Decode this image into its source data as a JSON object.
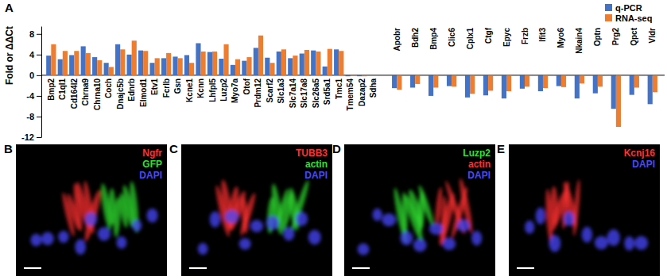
{
  "chart_data": {
    "type": "bar",
    "panel_label": "A",
    "y_label": "Fold or ΔΔCt",
    "categories": [
      "Bmp2",
      "C1ql1",
      "Cd164l2",
      "Chrna9",
      "Chrna10",
      "Coch",
      "Dnajc5b",
      "Ednrb",
      "Elmod1",
      "Etv1",
      "Fcrlb",
      "Gsn",
      "Kcne1",
      "Kcnn",
      "Lhfpl5",
      "Luzp2",
      "Myo7a",
      "Otof",
      "Prdm12",
      "Scarf2",
      "Slc1a3",
      "Slc7a14",
      "Slc17a8",
      "Slc26a5",
      "Srd5a1",
      "Tmc1",
      "Tmem54",
      "Dazap2",
      "Sdha",
      "Apobr",
      "Bdh2",
      "Bmp4",
      "Clic6",
      "Cplx1",
      "Ctgf",
      "Epyc",
      "Frzb",
      "Ifit3",
      "Myo6",
      "Nkain4",
      "Optn",
      "Prg2",
      "Qpct",
      "Vldr"
    ],
    "series": [
      {
        "name": "q-PCR",
        "color": "#4472c4",
        "values": [
          3.8,
          3.1,
          3.9,
          5.6,
          3.5,
          2.4,
          6.0,
          4.0,
          4.8,
          2.4,
          3.3,
          3.6,
          3.9,
          6.2,
          4.5,
          3.2,
          2.0,
          2.8,
          5.3,
          3.4,
          4.6,
          3.3,
          4.2,
          4.8,
          1.7,
          5.0,
          -0.2,
          -0.2,
          0,
          -2.5,
          -2.4,
          -4.0,
          -2.1,
          -4.3,
          -3.9,
          -4.5,
          -2.6,
          -3.1,
          -2.1,
          -4.5,
          -3.5,
          -6.5,
          -3.8,
          -5.6
        ]
      },
      {
        "name": "RNA-seq",
        "color": "#ed7d31",
        "values": [
          6.0,
          4.7,
          4.7,
          4.3,
          2.9,
          1.6,
          5.0,
          6.7,
          4.7,
          3.3,
          4.3,
          3.3,
          2.4,
          4.6,
          4.6,
          6.0,
          3.1,
          3.5,
          7.7,
          2.4,
          5.0,
          3.8,
          4.9,
          4.6,
          5.1,
          4.7,
          -0.1,
          -0.2,
          0,
          -2.8,
          -1.7,
          -2.4,
          -2.2,
          -3.6,
          -3.0,
          -3.1,
          -2.2,
          -2.5,
          -2.3,
          -1.6,
          -2.2,
          -10.0,
          -2.4,
          -3.3
        ]
      }
    ],
    "ylim": [
      -12,
      9.5
    ],
    "yticks": [
      -12,
      -8,
      -4,
      0,
      4,
      8
    ],
    "legend": "top-right"
  },
  "image_panels": [
    {
      "label": "B",
      "stains": [
        {
          "text": "Ngfr",
          "color": "#ff3030"
        },
        {
          "text": "GFP",
          "color": "#30e030"
        },
        {
          "text": "DAPI",
          "color": "#4848ff"
        }
      ]
    },
    {
      "label": "C",
      "stains": [
        {
          "text": "TUBB3",
          "color": "#ff3030"
        },
        {
          "text": "actin",
          "color": "#30e030"
        },
        {
          "text": "DAPI",
          "color": "#4848ff"
        }
      ]
    },
    {
      "label": "D",
      "stains": [
        {
          "text": "Luzp2",
          "color": "#30e030"
        },
        {
          "text": "actin",
          "color": "#ff3030"
        },
        {
          "text": "DAPI",
          "color": "#4848ff"
        }
      ]
    },
    {
      "label": "E",
      "stains": [
        {
          "text": "Kcnj16",
          "color": "#ff3030"
        },
        {
          "text": "DAPI",
          "color": "#4848ff"
        }
      ]
    }
  ]
}
